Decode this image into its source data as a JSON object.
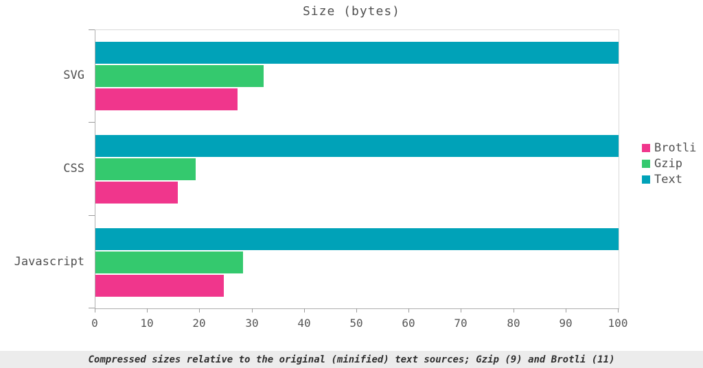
{
  "figure": {
    "caption": "Compressed sizes relative to the original (minified) text sources; Gzip (9) and Brotli (11)"
  },
  "chart_data": {
    "type": "bar",
    "orientation": "horizontal",
    "title": "Size (bytes)",
    "categories": [
      "SVG",
      "CSS",
      "Javascript"
    ],
    "series": [
      {
        "name": "Text",
        "color": "#00a2b8",
        "values": [
          100,
          100,
          100
        ]
      },
      {
        "name": "Gzip",
        "color": "#34c96e",
        "values": [
          32.2,
          19.2,
          28.2
        ]
      },
      {
        "name": "Brotli",
        "color": "#f0368c",
        "values": [
          27.2,
          15.7,
          24.5
        ]
      }
    ],
    "legend_order": [
      "Brotli",
      "Gzip",
      "Text"
    ],
    "legend_position": "right",
    "xlim": [
      0,
      100
    ],
    "x_ticks": [
      0,
      10,
      20,
      30,
      40,
      50,
      60,
      70,
      80,
      90,
      100
    ],
    "grid": false
  }
}
